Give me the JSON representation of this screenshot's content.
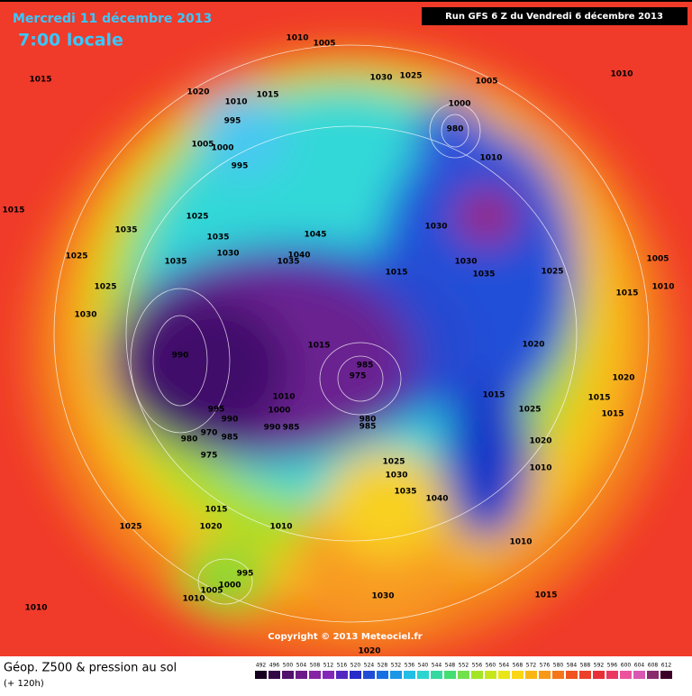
{
  "header": {
    "date": "Mercredi 11 décembre 2013",
    "time": "7:00 locale",
    "run": "Run GFS 6 Z du Vendredi 6 décembre 2013"
  },
  "copyright": "Copyright © 2013 Meteociel.fr",
  "legend": {
    "title": "Géop. Z500 & pression au sol",
    "subtitle": "(+ 120h)",
    "scale": [
      492,
      496,
      500,
      504,
      508,
      512,
      516,
      520,
      524,
      528,
      532,
      536,
      540,
      544,
      548,
      552,
      556,
      560,
      564,
      568,
      572,
      576,
      580,
      584,
      588,
      592,
      596,
      600,
      604,
      608,
      612
    ]
  },
  "pressure_labels": [
    1010,
    1005,
    1030,
    1025,
    1005,
    1010,
    1015,
    1020,
    1010,
    1015,
    995,
    1000,
    980,
    1005,
    1000,
    995,
    1010,
    1015,
    1025,
    1035,
    1035,
    1045,
    1030,
    1030,
    1040,
    1035,
    1030,
    1025,
    1035,
    1015,
    1035,
    1025,
    1005,
    1025,
    1015,
    1010,
    1030,
    1015,
    1020,
    990,
    985,
    975,
    1020,
    1015,
    1010,
    1015,
    995,
    1000,
    1025,
    1015,
    990,
    980,
    985,
    990,
    985,
    970,
    980,
    985,
    1020,
    975,
    1025,
    1010,
    1030,
    1035,
    1040,
    1015,
    1025,
    1020,
    1010,
    1010,
    995,
    1000,
    1005,
    1010,
    1030,
    1015,
    1010,
    1020
  ]
}
